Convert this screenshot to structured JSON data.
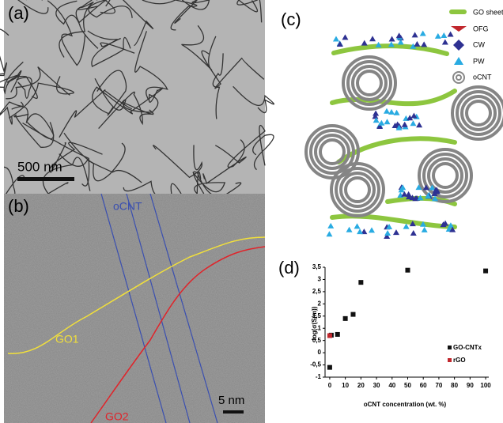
{
  "panels": {
    "a": {
      "label": "(a)",
      "scale_bar": "500 nm"
    },
    "b": {
      "label": "(b)",
      "annotations": [
        "oCNT",
        "GO1",
        "GO2"
      ],
      "scale_bar": "5 nm"
    },
    "c": {
      "label": "(c)",
      "legend": [
        "GO sheet",
        "OFG",
        "CW",
        "PW",
        "oCNT"
      ]
    },
    "d": {
      "label": "(d)"
    }
  },
  "chart_data": {
    "type": "scatter",
    "xlabel": "oCNT concentration (wt. %)",
    "ylabel": "log(σ(S/m))",
    "series": [
      {
        "name": "GO-CNTx",
        "color": "#111111",
        "x": [
          0,
          1,
          5,
          10,
          15,
          20,
          50,
          100
        ],
        "values": [
          -0.6,
          0.72,
          0.75,
          1.4,
          1.57,
          2.88,
          3.38,
          3.35
        ]
      },
      {
        "name": "rGO",
        "color": "#c1272d",
        "x": [
          0
        ],
        "values": [
          0.7
        ]
      }
    ],
    "xlim": [
      -3,
      102
    ],
    "xticks": [
      0,
      10,
      20,
      30,
      40,
      50,
      60,
      70,
      80,
      90,
      100
    ],
    "ylim": [
      -1,
      3.5
    ],
    "yticks": [
      -1,
      {
        "value": -0.5,
        "label": "-0,5"
      },
      0,
      {
        "value": 0.5,
        "label": "0,5"
      },
      1,
      {
        "value": 1.5,
        "label": "1,5"
      },
      2,
      {
        "value": 2.5,
        "label": "2,5"
      },
      3,
      {
        "value": 3.5,
        "label": "3,5"
      }
    ],
    "legend": "lower right"
  }
}
